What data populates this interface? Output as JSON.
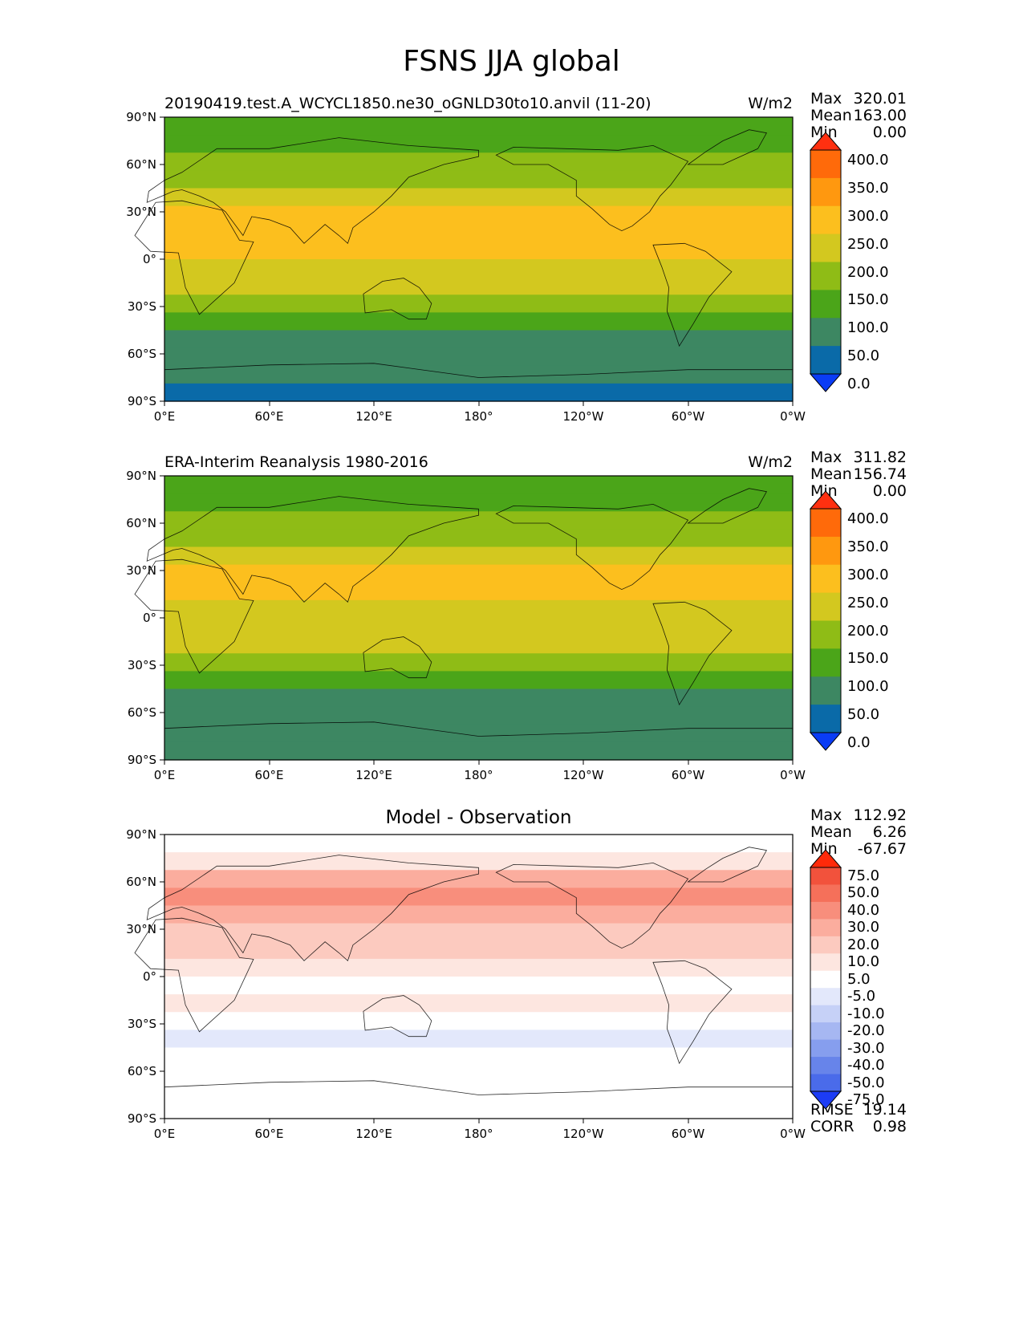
{
  "suptitle": "FSNS JJA global",
  "chart_data": [
    {
      "type": "heatmap",
      "title_left": "20190419.test.A_WCYCL1850.ne30_oGNLD30to10.anvil (11-20)",
      "units": "W/m2",
      "stats": [
        {
          "label": "Max",
          "value": "320.01"
        },
        {
          "label": "Mean",
          "value": "163.00"
        },
        {
          "label": "Min",
          "value": "0.00"
        }
      ],
      "x_ticks": [
        "0°E",
        "60°E",
        "120°E",
        "180°",
        "120°W",
        "60°W",
        "0°W"
      ],
      "y_ticks": [
        "90°N",
        "60°N",
        "30°N",
        "0°",
        "30°S",
        "60°S",
        "90°S"
      ],
      "colorbar": {
        "labels": [
          "400.0",
          "350.0",
          "300.0",
          "250.0",
          "200.0",
          "150.0",
          "100.0",
          "50.0",
          "0.0"
        ],
        "colors": [
          "#ff3010",
          "#ff6a0a",
          "#ff980f",
          "#fcbf1e",
          "#d3c81f",
          "#8fbc16",
          "#4ba519",
          "#3d8762",
          "#0a6aa8",
          "#0a3cf5"
        ]
      },
      "zonal_band_values": [
        100,
        100,
        150,
        150,
        200,
        250,
        250,
        250,
        200,
        200,
        150,
        100,
        50,
        50,
        50,
        0
      ]
    },
    {
      "type": "heatmap",
      "title_left": "ERA-Interim Reanalysis 1980-2016",
      "units": "W/m2",
      "stats": [
        {
          "label": "Max",
          "value": "311.82"
        },
        {
          "label": "Mean",
          "value": "156.74"
        },
        {
          "label": "Min",
          "value": "0.00"
        }
      ],
      "x_ticks": [
        "0°E",
        "60°E",
        "120°E",
        "180°",
        "120°W",
        "60°W",
        "0°W"
      ],
      "y_ticks": [
        "90°N",
        "60°N",
        "30°N",
        "0°",
        "30°S",
        "60°S",
        "90°S"
      ],
      "colorbar": {
        "labels": [
          "400.0",
          "350.0",
          "300.0",
          "250.0",
          "200.0",
          "150.0",
          "100.0",
          "50.0",
          "0.0"
        ],
        "colors": [
          "#ff3010",
          "#ff6a0a",
          "#ff980f",
          "#fcbf1e",
          "#d3c81f",
          "#8fbc16",
          "#4ba519",
          "#3d8762",
          "#0a6aa8",
          "#0a3cf5"
        ]
      },
      "zonal_band_values": [
        100,
        100,
        150,
        150,
        200,
        250,
        250,
        200,
        200,
        200,
        150,
        100,
        50,
        50,
        50,
        50
      ]
    },
    {
      "type": "heatmap",
      "title_center": "Model - Observation",
      "stats": [
        {
          "label": "Max",
          "value": "112.92"
        },
        {
          "label": "Mean",
          "value": "6.26"
        },
        {
          "label": "Min",
          "value": "-67.67"
        }
      ],
      "extra_stats": [
        {
          "label": "RMSE",
          "value": "19.14"
        },
        {
          "label": "CORR",
          "value": "0.98"
        }
      ],
      "x_ticks": [
        "0°E",
        "60°E",
        "120°E",
        "180°",
        "120°W",
        "60°W",
        "0°W"
      ],
      "y_ticks": [
        "90°N",
        "60°N",
        "30°N",
        "0°",
        "30°S",
        "60°S",
        "90°S"
      ],
      "colorbar": {
        "labels": [
          "75.0",
          "50.0",
          "40.0",
          "30.0",
          "20.0",
          "10.0",
          "5.0",
          "-5.0",
          "-10.0",
          "-20.0",
          "-30.0",
          "-40.0",
          "-50.0",
          "-75.0"
        ],
        "colors": [
          "#ff2a0a",
          "#f2523c",
          "#f5705a",
          "#f88e7c",
          "#fbad9e",
          "#fccabf",
          "#fde6e0",
          "#ffffff",
          "#e3e8fb",
          "#c6d1f7",
          "#a6b7f2",
          "#869eee",
          "#6784ea",
          "#4a6bea",
          "#1c3cf5"
        ]
      },
      "zonal_band_values": [
        0,
        5,
        20,
        30,
        20,
        10,
        10,
        5,
        0,
        5,
        0,
        -10,
        -5,
        0,
        0,
        0
      ]
    }
  ]
}
